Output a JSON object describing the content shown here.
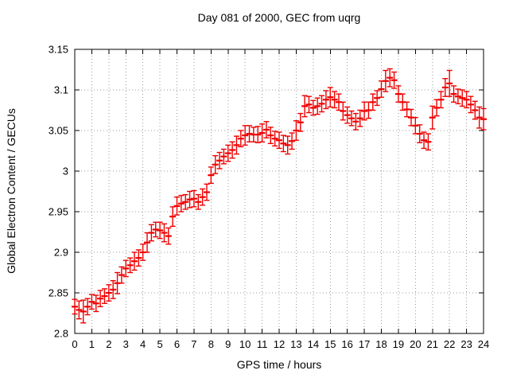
{
  "page": {
    "background": "#ffffff"
  },
  "chart_data": {
    "type": "scatter",
    "subtype": "yerrorbars",
    "title": "Day 081 of 2000, GEC from uqrg",
    "xlabel": "GPS time / hours",
    "ylabel": "Global Electron Content / GECUs",
    "xlim": [
      0,
      24
    ],
    "ylim": [
      2.8,
      3.15
    ],
    "grid": true,
    "legend": false,
    "error_bars": true,
    "series_color": "#ee0000",
    "grid_color": "#9b9b9b",
    "axis_color": "#000000",
    "x_ticks": [
      0,
      1,
      2,
      3,
      4,
      5,
      6,
      7,
      8,
      9,
      10,
      11,
      12,
      13,
      14,
      15,
      16,
      17,
      18,
      19,
      20,
      21,
      22,
      23,
      24
    ],
    "x_tick_labels": [
      "0",
      "1",
      "2",
      "3",
      "4",
      "5",
      "6",
      "7",
      "8",
      "9",
      "10",
      "11",
      "12",
      "13",
      "14",
      "15",
      "16",
      "17",
      "18",
      "19",
      "20",
      "21",
      "22",
      "23",
      "24"
    ],
    "y_ticks": [
      2.8,
      2.85,
      2.9,
      2.95,
      3.0,
      3.05,
      3.1,
      3.15
    ],
    "y_tick_labels": [
      "2.8",
      "2.85",
      "2.9",
      "2.95",
      "3",
      "3.05",
      "3.1",
      "3.15"
    ],
    "x": [
      0,
      0.25,
      0.5,
      0.75,
      1,
      1.25,
      1.5,
      1.75,
      2,
      2.25,
      2.5,
      2.75,
      3,
      3.25,
      3.5,
      3.75,
      4,
      4.25,
      4.5,
      4.75,
      5,
      5.25,
      5.5,
      5.75,
      6,
      6.25,
      6.5,
      6.75,
      7,
      7.25,
      7.5,
      7.75,
      8,
      8.25,
      8.5,
      8.75,
      9,
      9.25,
      9.5,
      9.75,
      10,
      10.25,
      10.5,
      10.75,
      11,
      11.25,
      11.5,
      11.75,
      12,
      12.25,
      12.5,
      12.75,
      13,
      13.25,
      13.5,
      13.75,
      14,
      14.25,
      14.5,
      14.75,
      15,
      15.25,
      15.5,
      15.75,
      16,
      16.25,
      16.5,
      16.75,
      17,
      17.25,
      17.5,
      17.75,
      18,
      18.25,
      18.5,
      18.75,
      19,
      19.25,
      19.5,
      19.75,
      20,
      20.25,
      20.5,
      20.75,
      21,
      21.25,
      21.5,
      21.75,
      22,
      22.25,
      22.5,
      22.75,
      23,
      23.25,
      23.5,
      23.75,
      24
    ],
    "y": [
      2.833,
      2.829,
      2.827,
      2.833,
      2.839,
      2.837,
      2.843,
      2.846,
      2.85,
      2.854,
      2.862,
      2.872,
      2.88,
      2.884,
      2.889,
      2.893,
      2.9,
      2.912,
      2.924,
      2.928,
      2.927,
      2.924,
      2.92,
      2.944,
      2.957,
      2.96,
      2.962,
      2.965,
      2.966,
      2.962,
      2.968,
      2.974,
      2.995,
      3.008,
      3.013,
      3.018,
      3.022,
      3.026,
      3.032,
      3.04,
      3.044,
      3.046,
      3.045,
      3.045,
      3.047,
      3.051,
      3.044,
      3.04,
      3.038,
      3.034,
      3.032,
      3.037,
      3.05,
      3.06,
      3.08,
      3.082,
      3.078,
      3.08,
      3.083,
      3.088,
      3.091,
      3.088,
      3.085,
      3.074,
      3.069,
      3.065,
      3.061,
      3.065,
      3.074,
      3.075,
      3.085,
      3.09,
      3.101,
      3.111,
      3.115,
      3.112,
      3.095,
      3.085,
      3.076,
      3.066,
      3.056,
      3.046,
      3.038,
      3.036,
      3.066,
      3.078,
      3.088,
      3.103,
      3.108,
      3.095,
      3.092,
      3.09,
      3.088,
      3.082,
      3.075,
      3.066,
      3.064
    ],
    "yerr": [
      0.009,
      0.011,
      0.014,
      0.01,
      0.009,
      0.01,
      0.01,
      0.009,
      0.01,
      0.011,
      0.013,
      0.01,
      0.01,
      0.009,
      0.011,
      0.01,
      0.01,
      0.012,
      0.01,
      0.009,
      0.01,
      0.011,
      0.01,
      0.012,
      0.011,
      0.01,
      0.009,
      0.01,
      0.01,
      0.009,
      0.01,
      0.01,
      0.01,
      0.011,
      0.01,
      0.009,
      0.01,
      0.01,
      0.011,
      0.01,
      0.012,
      0.01,
      0.009,
      0.01,
      0.011,
      0.01,
      0.01,
      0.009,
      0.01,
      0.01,
      0.011,
      0.01,
      0.012,
      0.011,
      0.013,
      0.01,
      0.009,
      0.01,
      0.01,
      0.011,
      0.012,
      0.01,
      0.01,
      0.011,
      0.01,
      0.009,
      0.01,
      0.01,
      0.011,
      0.01,
      0.01,
      0.009,
      0.01,
      0.013,
      0.011,
      0.01,
      0.01,
      0.01,
      0.009,
      0.01,
      0.01,
      0.011,
      0.01,
      0.01,
      0.014,
      0.01,
      0.01,
      0.011,
      0.016,
      0.01,
      0.009,
      0.01,
      0.01,
      0.01,
      0.011,
      0.013,
      0.013
    ]
  }
}
